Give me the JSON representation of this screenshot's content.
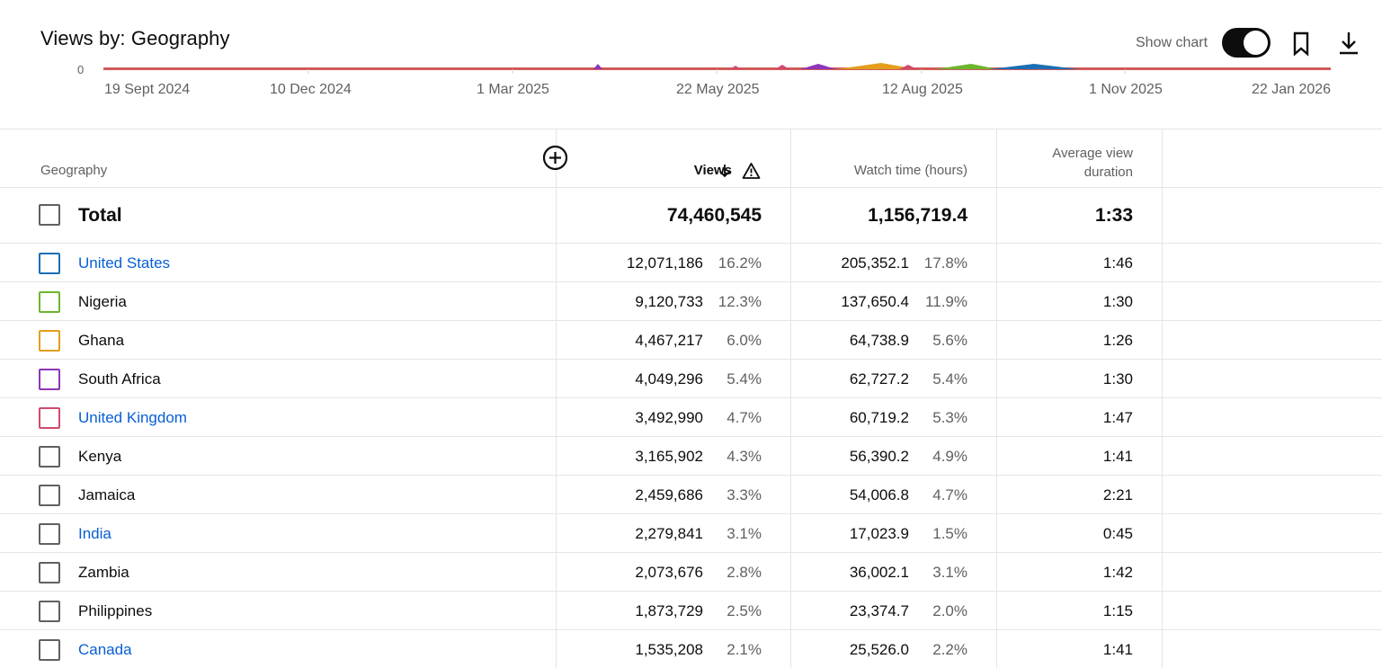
{
  "header": {
    "title": "Views by: Geography",
    "show_chart_label": "Show chart",
    "show_chart_on": true,
    "bookmark_icon": "bookmark-icon",
    "download_icon": "download-icon"
  },
  "chart": {
    "y_tick": "0",
    "x_ticks": [
      "19 Sept 2024",
      "10 Dec 2024",
      "1 Mar 2025",
      "22 May 2025",
      "12 Aug 2025",
      "1 Nov 2025",
      "22 Jan 2026"
    ],
    "baseline_color": "#d05a5a"
  },
  "table": {
    "columns": {
      "geography": "Geography",
      "views": "Views",
      "watch_time": "Watch time (hours)",
      "avg_duration": "Average view duration"
    },
    "sort_icon": "arrow-down-icon",
    "warning_icon": "warning-icon",
    "add_column_icon": "add-circle-icon",
    "total": {
      "label": "Total",
      "views": "74,460,545",
      "watch_time": "1,156,719.4",
      "avg_duration": "1:33"
    },
    "rows": [
      {
        "name": "United States",
        "link": true,
        "color": "#1a6fb3",
        "views": "12,071,186",
        "views_pct": "16.2%",
        "watch": "205,352.1",
        "watch_pct": "17.8%",
        "avg": "1:46"
      },
      {
        "name": "Nigeria",
        "link": false,
        "color": "#6cb52d",
        "views": "9,120,733",
        "views_pct": "12.3%",
        "watch": "137,650.4",
        "watch_pct": "11.9%",
        "avg": "1:30"
      },
      {
        "name": "Ghana",
        "link": false,
        "color": "#e39e1c",
        "views": "4,467,217",
        "views_pct": "6.0%",
        "watch": "64,738.9",
        "watch_pct": "5.6%",
        "avg": "1:26"
      },
      {
        "name": "South Africa",
        "link": false,
        "color": "#8e35b8",
        "views": "4,049,296",
        "views_pct": "5.4%",
        "watch": "62,727.2",
        "watch_pct": "5.4%",
        "avg": "1:30"
      },
      {
        "name": "United Kingdom",
        "link": true,
        "color": "#d14a6c",
        "views": "3,492,990",
        "views_pct": "4.7%",
        "watch": "60,719.2",
        "watch_pct": "5.3%",
        "avg": "1:47"
      },
      {
        "name": "Kenya",
        "link": false,
        "color": "#606060",
        "views": "3,165,902",
        "views_pct": "4.3%",
        "watch": "56,390.2",
        "watch_pct": "4.9%",
        "avg": "1:41"
      },
      {
        "name": "Jamaica",
        "link": false,
        "color": "#606060",
        "views": "2,459,686",
        "views_pct": "3.3%",
        "watch": "54,006.8",
        "watch_pct": "4.7%",
        "avg": "2:21"
      },
      {
        "name": "India",
        "link": true,
        "color": "#606060",
        "views": "2,279,841",
        "views_pct": "3.1%",
        "watch": "17,023.9",
        "watch_pct": "1.5%",
        "avg": "0:45"
      },
      {
        "name": "Zambia",
        "link": false,
        "color": "#606060",
        "views": "2,073,676",
        "views_pct": "2.8%",
        "watch": "36,002.1",
        "watch_pct": "3.1%",
        "avg": "1:42"
      },
      {
        "name": "Philippines",
        "link": false,
        "color": "#606060",
        "views": "1,873,729",
        "views_pct": "2.5%",
        "watch": "23,374.7",
        "watch_pct": "2.0%",
        "avg": "1:15"
      },
      {
        "name": "Canada",
        "link": true,
        "color": "#606060",
        "views": "1,535,208",
        "views_pct": "2.1%",
        "watch": "25,526.0",
        "watch_pct": "2.2%",
        "avg": "1:41"
      }
    ]
  }
}
